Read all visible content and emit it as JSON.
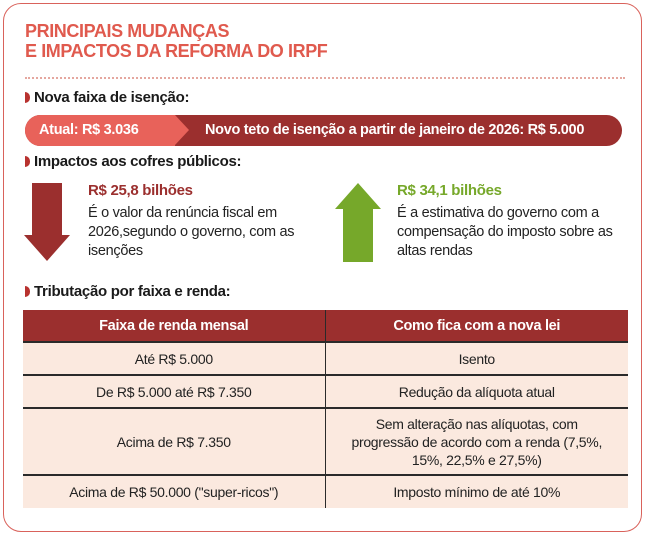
{
  "title": [
    "PRINCIPAIS MUDANÇAS",
    "E IMPACTOS DA REFORMA DO IRPF"
  ],
  "colors": {
    "accent": "#e05a4e",
    "dark_red": "#9b2f2e",
    "light_red": "#e8625a",
    "green": "#76a82a",
    "row_bg": "#fbe9df"
  },
  "section1": {
    "heading": "Nova faixa de isenção:",
    "current": "Atual: R$ 3.036",
    "new": "Novo teto de isenção a partir de janeiro de 2026: R$ 5.000"
  },
  "section2": {
    "heading": "Impactos aos cofres públicos:",
    "loss": {
      "icon": "arrow-down-icon",
      "amount": "R$ 25,8 bilhões",
      "desc": "É o valor da renúncia fiscal em 2026,segundo o governo, com as isenções"
    },
    "gain": {
      "icon": "arrow-up-icon",
      "amount": "R$ 34,1 bilhões",
      "desc": "É a estimativa do governo com a compensação do imposto sobre as altas rendas"
    }
  },
  "section3": {
    "heading": "Tributação por faixa e renda:",
    "table": {
      "headers": [
        "Faixa de renda mensal",
        "Como fica com a nova lei"
      ],
      "rows": [
        [
          "Até R$ 5.000",
          "Isento"
        ],
        [
          "De R$ 5.000 até R$ 7.350",
          "Redução da alíquota atual"
        ],
        [
          "Acima de R$ 7.350",
          "Sem alteração nas alíquotas, com progressão de acordo com a renda (7,5%, 15%, 22,5% e 27,5%)"
        ],
        [
          "Acima de R$ 50.000 (\"super-ricos\")",
          "Imposto mínimo de até 10%"
        ]
      ]
    }
  }
}
